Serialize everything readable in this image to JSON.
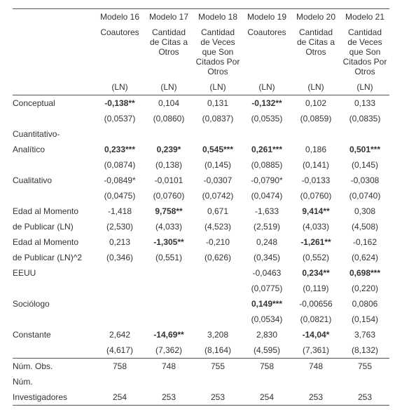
{
  "headers": {
    "models": [
      "Modelo 16",
      "Modelo 17",
      "Modelo 18",
      "Modelo 19",
      "Modelo 20",
      "Modelo 21"
    ],
    "depvars": [
      "Coautores",
      "Cantidad de Citas a Otros",
      "Cantidad de Veces que Son Citados Por Otros",
      "Coautores",
      "Cantidad de Citas a Otros",
      "Cantidad de Veces que Son Citados Por Otros"
    ],
    "unit": [
      "(LN)",
      "(LN)",
      "(LN)",
      "(LN)",
      "(LN)",
      "(LN)"
    ]
  },
  "rows": [
    {
      "label": "Conceptual",
      "cells": [
        {
          "v": "-0,138**",
          "b": true
        },
        {
          "v": "0,104"
        },
        {
          "v": "0,131"
        },
        {
          "v": "-0,132**",
          "b": true
        },
        {
          "v": "0,102"
        },
        {
          "v": "0,133"
        }
      ]
    },
    {
      "label": "",
      "cells": [
        {
          "v": "(0,0537)"
        },
        {
          "v": "(0,0860)"
        },
        {
          "v": "(0,0837)"
        },
        {
          "v": "(0,0535)"
        },
        {
          "v": "(0,0859)"
        },
        {
          "v": "(0,0835)"
        }
      ]
    },
    {
      "label": "Cuantitativo-",
      "cells": [
        {
          "v": ""
        },
        {
          "v": ""
        },
        {
          "v": ""
        },
        {
          "v": ""
        },
        {
          "v": ""
        },
        {
          "v": ""
        }
      ]
    },
    {
      "label": "Analítico",
      "cells": [
        {
          "v": "0,233***",
          "b": true
        },
        {
          "v": "0,239*",
          "b": true
        },
        {
          "v": "0,545***",
          "b": true
        },
        {
          "v": "0,261***",
          "b": true
        },
        {
          "v": "0,186"
        },
        {
          "v": "0,501***",
          "b": true
        }
      ]
    },
    {
      "label": "",
      "cells": [
        {
          "v": "(0,0874)"
        },
        {
          "v": "(0,138)"
        },
        {
          "v": "(0,145)"
        },
        {
          "v": "(0,0885)"
        },
        {
          "v": "(0,141)"
        },
        {
          "v": "(0,145)"
        }
      ]
    },
    {
      "label": "Cualitativo",
      "cells": [
        {
          "v": "-0,0849*"
        },
        {
          "v": "-0,0101"
        },
        {
          "v": "-0,0307"
        },
        {
          "v": "-0,0790*"
        },
        {
          "v": "-0,0133"
        },
        {
          "v": "-0,0308"
        }
      ]
    },
    {
      "label": "",
      "cells": [
        {
          "v": "(0,0475)"
        },
        {
          "v": "(0,0760)"
        },
        {
          "v": "(0,0742)"
        },
        {
          "v": "(0,0474)"
        },
        {
          "v": "(0,0760)"
        },
        {
          "v": "(0,0740)"
        }
      ]
    },
    {
      "label": "Edad al Momento",
      "cells": [
        {
          "v": "-1,418"
        },
        {
          "v": "9,758**",
          "b": true
        },
        {
          "v": "0,671"
        },
        {
          "v": "-1,633"
        },
        {
          "v": "9,414**",
          "b": true
        },
        {
          "v": "0,308"
        }
      ]
    },
    {
      "label": "de Publicar (LN)",
      "cells": [
        {
          "v": "(2,530)"
        },
        {
          "v": "(4,033)"
        },
        {
          "v": "(4,523)"
        },
        {
          "v": "(2,519)"
        },
        {
          "v": "(4,033)"
        },
        {
          "v": "(4,508)"
        }
      ]
    },
    {
      "label": "Edad al Momento",
      "cells": [
        {
          "v": "0,213"
        },
        {
          "v": "-1,305**",
          "b": true
        },
        {
          "v": "-0,210"
        },
        {
          "v": "0,248"
        },
        {
          "v": "-1,261**",
          "b": true
        },
        {
          "v": "-0,162"
        }
      ]
    },
    {
      "label": "de Publicar (LN)^2",
      "cells": [
        {
          "v": "(0,346)"
        },
        {
          "v": "(0,551)"
        },
        {
          "v": "(0,626)"
        },
        {
          "v": "(0,345)"
        },
        {
          "v": "(0,552)"
        },
        {
          "v": "(0,624)"
        }
      ]
    },
    {
      "label": "EEUU",
      "cells": [
        {
          "v": ""
        },
        {
          "v": ""
        },
        {
          "v": ""
        },
        {
          "v": "-0,0463"
        },
        {
          "v": "0,234**",
          "b": true
        },
        {
          "v": "0,698***",
          "b": true
        }
      ]
    },
    {
      "label": "",
      "cells": [
        {
          "v": ""
        },
        {
          "v": ""
        },
        {
          "v": ""
        },
        {
          "v": "(0,0775)"
        },
        {
          "v": "(0,119)"
        },
        {
          "v": "(0,220)"
        }
      ]
    },
    {
      "label": "Sociólogo",
      "cells": [
        {
          "v": ""
        },
        {
          "v": ""
        },
        {
          "v": ""
        },
        {
          "v": "0,149***",
          "b": true
        },
        {
          "v": "-0,00656"
        },
        {
          "v": "0,0806"
        }
      ]
    },
    {
      "label": "",
      "cells": [
        {
          "v": ""
        },
        {
          "v": ""
        },
        {
          "v": ""
        },
        {
          "v": "(0,0534)"
        },
        {
          "v": "(0,0821)"
        },
        {
          "v": "(0,154)"
        }
      ]
    },
    {
      "label": "Constante",
      "cells": [
        {
          "v": "2,642"
        },
        {
          "v": "-14,69**",
          "b": true
        },
        {
          "v": "3,208"
        },
        {
          "v": "2,830"
        },
        {
          "v": "-14,04*",
          "b": true
        },
        {
          "v": "3,763"
        }
      ]
    },
    {
      "label": "",
      "cells": [
        {
          "v": "(4,617)"
        },
        {
          "v": "(7,362)"
        },
        {
          "v": "(8,164)"
        },
        {
          "v": "(4,595)"
        },
        {
          "v": "(7,361)"
        },
        {
          "v": "(8,132)"
        }
      ],
      "sect_end": true
    },
    {
      "label": "Núm. Obs.",
      "cells": [
        {
          "v": "758"
        },
        {
          "v": "748"
        },
        {
          "v": "755"
        },
        {
          "v": "758"
        },
        {
          "v": "748"
        },
        {
          "v": "755"
        }
      ]
    },
    {
      "label": "Núm.",
      "cells": [
        {
          "v": ""
        },
        {
          "v": ""
        },
        {
          "v": ""
        },
        {
          "v": ""
        },
        {
          "v": ""
        },
        {
          "v": ""
        }
      ]
    },
    {
      "label": "Investigadores",
      "cells": [
        {
          "v": "254"
        },
        {
          "v": "253"
        },
        {
          "v": "253"
        },
        {
          "v": "254"
        },
        {
          "v": "253"
        },
        {
          "v": "253"
        }
      ],
      "last": true
    }
  ]
}
